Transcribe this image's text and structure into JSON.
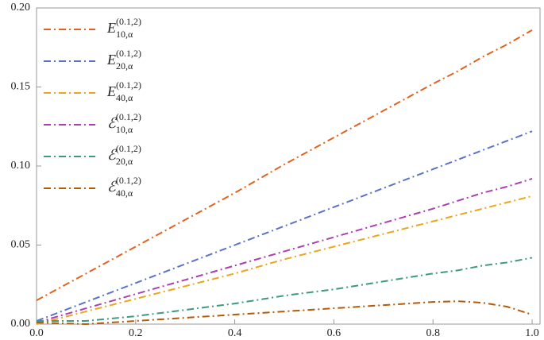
{
  "chart_data": {
    "type": "line",
    "x": [
      0,
      0.1,
      0.2,
      0.3,
      0.4,
      0.5,
      0.6,
      0.7,
      0.8,
      0.85,
      0.9,
      0.95,
      1.0
    ],
    "series": [
      {
        "name": "E10,α(0.1,2)",
        "color": "#e0631d",
        "values": [
          0.015,
          0.032,
          0.049,
          0.066,
          0.083,
          0.101,
          0.118,
          0.135,
          0.152,
          0.16,
          0.169,
          0.177,
          0.186
        ]
      },
      {
        "name": "E20,α(0.1,2)",
        "color": "#5b72c9",
        "values": [
          0.002,
          0.014,
          0.026,
          0.038,
          0.05,
          0.062,
          0.074,
          0.086,
          0.098,
          0.104,
          0.11,
          0.116,
          0.122
        ]
      },
      {
        "name": "E40,α(0.1,2)",
        "color": "#eda51c",
        "values": [
          0,
          0.008,
          0.016,
          0.024,
          0.032,
          0.041,
          0.049,
          0.057,
          0.065,
          0.069,
          0.073,
          0.077,
          0.081
        ]
      },
      {
        "name": "ℰ10,α(0.1,2)",
        "color": "#a93fb0",
        "values": [
          0.001,
          0.01,
          0.019,
          0.028,
          0.037,
          0.046,
          0.055,
          0.064,
          0.073,
          0.078,
          0.083,
          0.087,
          0.092
        ]
      },
      {
        "name": "ℰ20,α(0.1,2)",
        "color": "#3e9a7d",
        "values": [
          0.002,
          0.002,
          0.005,
          0.009,
          0.013,
          0.018,
          0.022,
          0.027,
          0.032,
          0.034,
          0.037,
          0.039,
          0.042
        ]
      },
      {
        "name": "ℰ40,α(0.1,2)",
        "color": "#b5590a",
        "values": [
          0.001,
          0,
          0.002,
          0.004,
          0.006,
          0.008,
          0.01,
          0.012,
          0.014,
          0.0145,
          0.0135,
          0.011,
          0.006
        ]
      }
    ],
    "xlim": [
      0,
      1.016
    ],
    "ylim": [
      0,
      0.2
    ],
    "xticks": [
      {
        "value": 0,
        "label": "0.0"
      },
      0.2,
      0.4,
      0.6,
      0.8,
      {
        "value": 1.0,
        "label": "1.0"
      }
    ],
    "yticks": [
      {
        "value": 0,
        "label": "0.00"
      },
      0.05,
      {
        "value": 0.1,
        "label": "0.10"
      },
      0.15,
      {
        "value": 0.2,
        "label": "0.20"
      }
    ],
    "legend": "top-left"
  }
}
